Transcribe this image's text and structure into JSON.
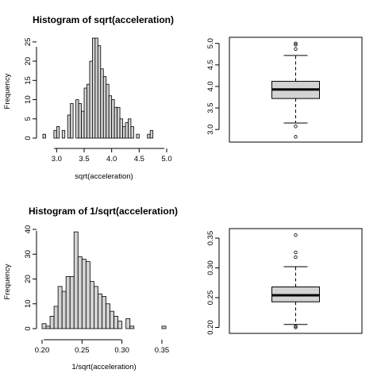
{
  "chart_data": [
    {
      "type": "bar",
      "subtype": "histogram",
      "title": "Histogram of sqrt(acceleration)",
      "xlabel": "sqrt(acceleration)",
      "ylabel": "Frequency",
      "xlim": [
        2.75,
        5.0
      ],
      "ylim": [
        0,
        26
      ],
      "x_ticks": [
        "3.0",
        "3.5",
        "4.0",
        "4.5",
        "5.0"
      ],
      "y_ticks": [
        "0",
        "5",
        "10",
        "15",
        "20",
        "25"
      ],
      "bin_width": 0.05,
      "bin_start": 2.75,
      "values": [
        1,
        0,
        0,
        0,
        2,
        3,
        0,
        2,
        0,
        6,
        9,
        0,
        10,
        9,
        7,
        13,
        14,
        20,
        26,
        26,
        24,
        18,
        16,
        14,
        11,
        10,
        8,
        8,
        5,
        3,
        4,
        5,
        3,
        0,
        1,
        0,
        0,
        0,
        1,
        2
      ],
      "fill": "#d3d3d3",
      "edge": "#000000"
    },
    {
      "type": "boxplot",
      "ylim": [
        2.8,
        5.05
      ],
      "y_ticks": [
        "3.0",
        "3.5",
        "4.0",
        "4.5",
        "5.0"
      ],
      "whisker_low": 3.15,
      "q1": 3.72,
      "median": 3.93,
      "q3": 4.12,
      "whisker_high": 4.72,
      "outliers": [
        2.83,
        3.07,
        4.87,
        4.97,
        5.0
      ],
      "fill": "#d3d3d3"
    },
    {
      "type": "bar",
      "subtype": "histogram",
      "title": "Histogram of 1/sqrt(acceleration)",
      "xlabel": "1/sqrt(acceleration)",
      "ylabel": "Frequency",
      "xlim": [
        0.2,
        0.355
      ],
      "ylim": [
        0,
        40
      ],
      "x_ticks": [
        "0.20",
        "0.25",
        "0.30",
        "0.35"
      ],
      "y_ticks": [
        "0",
        "10",
        "20",
        "30",
        "40"
      ],
      "bin_width": 0.005,
      "bin_start": 0.2,
      "values": [
        2,
        1,
        5,
        9,
        17,
        15,
        21,
        21,
        39,
        29,
        28,
        27,
        19,
        17,
        14,
        13,
        10,
        7,
        5,
        3,
        0,
        4,
        1,
        0,
        0,
        0,
        0,
        0,
        0,
        0,
        1
      ],
      "fill": "#d3d3d3",
      "edge": "#000000"
    },
    {
      "type": "boxplot",
      "ylim": [
        0.198,
        0.358
      ],
      "y_ticks": [
        "0.20",
        "0.25",
        "0.30",
        "0.35"
      ],
      "whisker_low": 0.205,
      "q1": 0.243,
      "median": 0.254,
      "q3": 0.268,
      "whisker_high": 0.302,
      "outliers": [
        0.2,
        0.202,
        0.318,
        0.326,
        0.355
      ],
      "fill": "#d3d3d3"
    }
  ]
}
